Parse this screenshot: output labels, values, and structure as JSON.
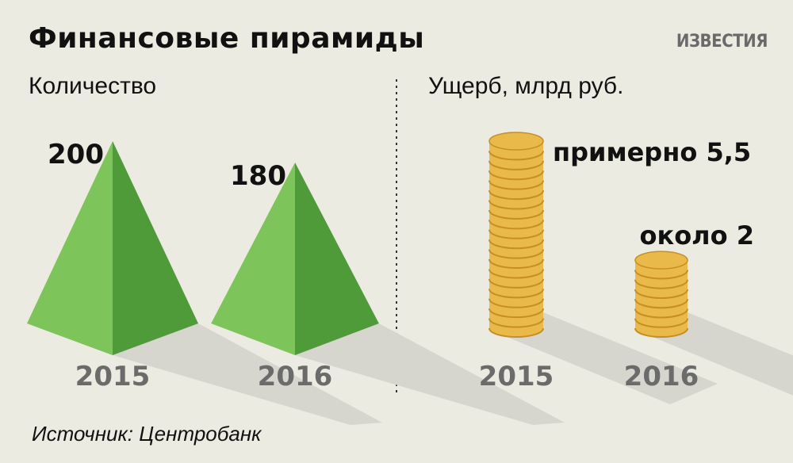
{
  "header": {
    "title": "Финансовые пирамиды",
    "brand": "ИЗВЕСТИЯ"
  },
  "source": "Источник: Центробанк",
  "colors": {
    "background": "#ebebe2",
    "pyramid_light": "#7dc45a",
    "pyramid_dark": "#4f9a39",
    "coin_light": "#e9b94a",
    "coin_dark": "#c68e24",
    "shadow": "#d6d6ce"
  },
  "chart_data": [
    {
      "type": "bar",
      "title": "Количество",
      "categories": [
        "2015",
        "2016"
      ],
      "values": [
        200,
        180
      ],
      "value_labels": [
        "200",
        "180"
      ],
      "mark": "pyramid"
    },
    {
      "type": "bar",
      "title": "Ущерб, млрд руб.",
      "categories": [
        "2015",
        "2016"
      ],
      "values": [
        5.5,
        2
      ],
      "value_labels": [
        "примерно 5,5",
        "около 2"
      ],
      "mark": "coin-stack"
    }
  ]
}
